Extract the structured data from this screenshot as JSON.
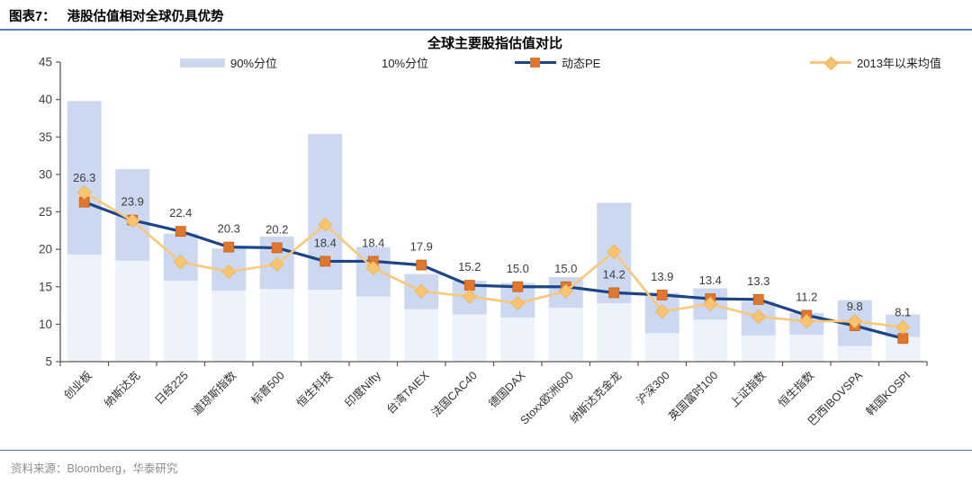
{
  "page": {
    "figure_label": "图表7：",
    "figure_title": "港股估值相对全球仍具优势",
    "source_text": "资料来源：Bloomberg，华泰研究"
  },
  "chart_data": {
    "type": "bar",
    "subtype": "percentile-band-with-lines",
    "title": "全球主要股指估值对比",
    "xlabel": "",
    "ylabel": "",
    "ylim": [
      5,
      45
    ],
    "yticks": [
      5,
      10,
      15,
      20,
      25,
      30,
      35,
      40,
      45
    ],
    "grid": false,
    "legend_position": "top",
    "categories": [
      "创业板",
      "纳斯达克",
      "日经225",
      "道琼斯指数",
      "标普500",
      "恒生科技",
      "印度Nifty",
      "台湾TAIEX",
      "法国CAC40",
      "德国DAX",
      "Stoxx欧洲600",
      "纳斯达克金龙",
      "沪深300",
      "英国富时100",
      "上证指数",
      "恒生指数",
      "巴西IBOVSPA",
      "韩国KOSPI"
    ],
    "series": [
      {
        "name": "90%分位",
        "role": "band_high",
        "type": "bar",
        "color": "#ccd8ef",
        "values": [
          39.8,
          30.7,
          22.1,
          20.1,
          21.7,
          35.4,
          20.3,
          16.7,
          15.8,
          15.5,
          16.3,
          26.2,
          14.2,
          14.8,
          13.0,
          11.5,
          13.2,
          11.3
        ]
      },
      {
        "name": "10%分位",
        "role": "band_low",
        "type": "bar",
        "color": "#eef2fa",
        "values": [
          19.3,
          18.5,
          15.8,
          14.5,
          14.7,
          14.6,
          13.7,
          12.0,
          11.3,
          10.9,
          12.2,
          12.8,
          8.8,
          10.6,
          8.5,
          8.6,
          7.1,
          8.3
        ]
      },
      {
        "name": "动态PE",
        "role": "pe",
        "type": "line",
        "color": "#1c4587",
        "marker": "square",
        "marker_color": "#e0772c",
        "data_labels": true,
        "values": [
          26.3,
          23.9,
          22.4,
          20.3,
          20.2,
          18.4,
          18.4,
          17.9,
          15.2,
          15.0,
          15.0,
          14.2,
          13.9,
          13.4,
          13.3,
          11.2,
          9.8,
          8.1
        ]
      },
      {
        "name": "2013年以来均值",
        "role": "mean",
        "type": "line",
        "color": "#f9c77c",
        "marker": "diamond",
        "marker_color": "#f8c470",
        "data_labels": false,
        "values": [
          27.6,
          23.8,
          18.3,
          17.0,
          18.0,
          23.3,
          17.5,
          14.4,
          13.7,
          12.8,
          14.4,
          19.7,
          11.7,
          12.7,
          11.0,
          10.4,
          10.4,
          9.6
        ]
      }
    ]
  }
}
